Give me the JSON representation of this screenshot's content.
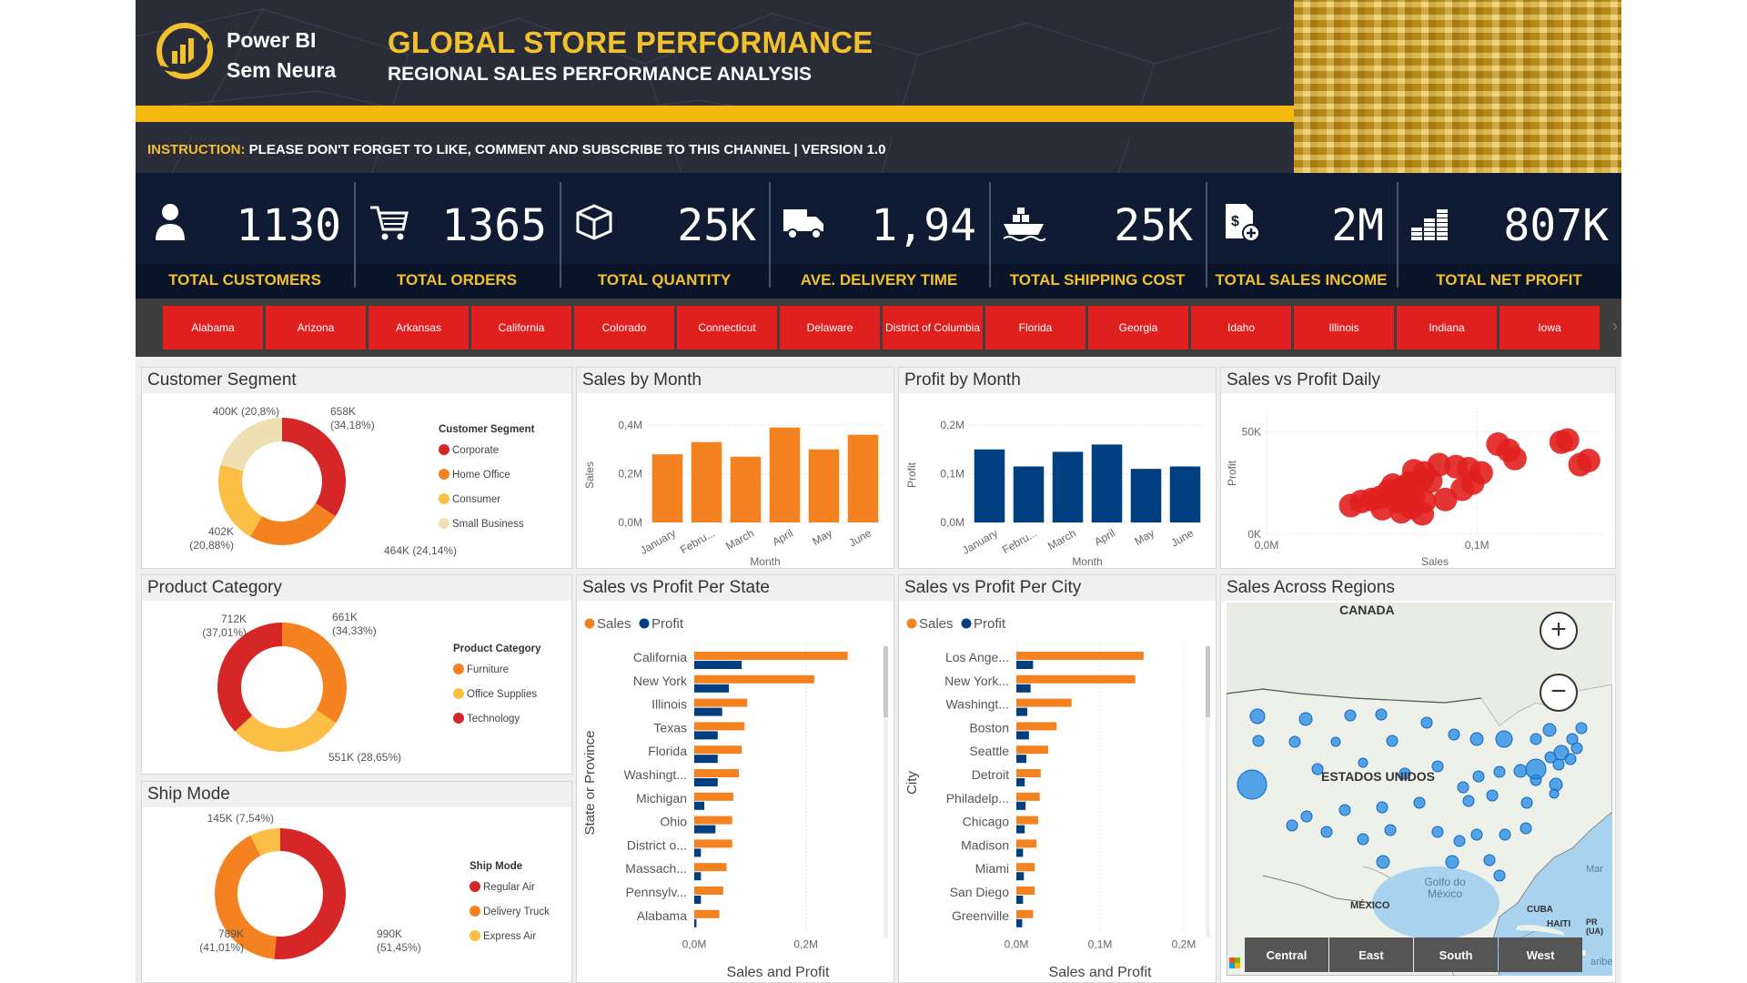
{
  "header": {
    "brand_line1": "Power BI",
    "brand_line2": "Sem Neura",
    "title": "GLOBAL STORE PERFORMANCE",
    "subtitle": "REGIONAL SALES PERFORMANCE ANALYSIS",
    "instruction_label": "INSTRUCTION:",
    "instruction_text": " PLEASE DON'T FORGET TO LIKE, COMMENT AND SUBSCRIBE TO THIS CHANNEL | VERSION 1.0",
    "accent_color": "#f2c12e"
  },
  "kpis": [
    {
      "value": "1130",
      "label": "TOTAL CUSTOMERS",
      "icon": "person-icon"
    },
    {
      "value": "1365",
      "label": "TOTAL ORDERS",
      "icon": "cart-icon"
    },
    {
      "value": "25K",
      "label": "TOTAL QUANTITY",
      "icon": "box-icon"
    },
    {
      "value": "1,94",
      "label": "AVE. DELIVERY TIME",
      "icon": "truck-icon"
    },
    {
      "value": "25K",
      "label": "TOTAL SHIPPING COST",
      "icon": "ship-icon"
    },
    {
      "value": "2M",
      "label": "TOTAL SALES INCOME",
      "icon": "invoice-icon"
    },
    {
      "value": "807K",
      "label": "TOTAL NET PROFIT",
      "icon": "coins-icon"
    }
  ],
  "states": [
    "Alabama",
    "Arizona",
    "Arkansas",
    "California",
    "Colorado",
    "Connecticut",
    "Delaware",
    "District of Columbia",
    "Florida",
    "Georgia",
    "Idaho",
    "Illinois",
    "Indiana",
    "Iowa"
  ],
  "panels": {
    "customer_segment": "Customer Segment",
    "sales_by_month": "Sales by Month",
    "profit_by_month": "Profit by Month",
    "sales_vs_profit_daily": "Sales vs Profit Daily",
    "product_category": "Product Category",
    "sales_vs_profit_state": "Sales vs Profit Per State",
    "sales_vs_profit_city": "Sales vs Profit Per City",
    "sales_across_regions": "Sales Across Regions",
    "ship_mode": "Ship Mode"
  },
  "map": {
    "labels": {
      "canada": "CANADA",
      "usa": "ESTADOS UNIDOS",
      "mexico": "MÉXICO",
      "gulf": "Golfo do México",
      "cuba": "CUBA",
      "haiti": "HAITI",
      "sea": "Mar",
      "pr": "PR (UA)",
      "caribe": "aribe"
    },
    "zoom_in": "+",
    "zoom_out": "−",
    "regions": [
      "Central",
      "East",
      "South",
      "West"
    ],
    "point_color": "#1e88e5"
  },
  "chart_data": [
    {
      "type": "pie",
      "title": "Customer Segment",
      "legend_title": "Customer Segment",
      "labels": [
        "Corporate",
        "Home Office",
        "Consumer",
        "Small Business"
      ],
      "values": [
        658000,
        464000,
        402000,
        400000
      ],
      "data_labels": [
        "658K (34,18%)",
        "464K (24,14%)",
        "402K (20,88%)",
        "400K (20,8%)"
      ],
      "colors": [
        "#d62728",
        "#f58220",
        "#fbbf45",
        "#eee0b0"
      ]
    },
    {
      "type": "bar",
      "title": "Sales by Month",
      "categories": [
        "January",
        "Febru...",
        "March",
        "April",
        "May",
        "June"
      ],
      "values": [
        0.28,
        0.33,
        0.27,
        0.39,
        0.3,
        0.36
      ],
      "xlabel": "Month",
      "ylabel": "Sales",
      "ylim": [
        0,
        0.4
      ],
      "yticks": [
        "0,0M",
        "0,2M",
        "0,4M"
      ],
      "color": "#f58220"
    },
    {
      "type": "bar",
      "title": "Profit by Month",
      "categories": [
        "January",
        "Febru...",
        "March",
        "April",
        "May",
        "June"
      ],
      "values": [
        0.15,
        0.115,
        0.145,
        0.16,
        0.11,
        0.115
      ],
      "xlabel": "Month",
      "ylabel": "Profit",
      "ylim": [
        0,
        0.2
      ],
      "yticks": [
        "0,0M",
        "0,1M",
        "0,2M"
      ],
      "color": "#003f7f"
    },
    {
      "type": "scatter",
      "title": "Sales vs Profit Daily",
      "xlabel": "Sales",
      "ylabel": "Profit",
      "xticks": [
        "0,0M",
        "0,1M"
      ],
      "yticks": [
        "0K",
        "50K"
      ],
      "xlim": [
        0,
        0.16
      ],
      "ylim": [
        0,
        60000
      ],
      "color": "#e0201f",
      "points": [
        [
          0.11,
          44000
        ],
        [
          0.115,
          41000
        ],
        [
          0.118,
          37000
        ],
        [
          0.082,
          34000
        ],
        [
          0.09,
          33000
        ],
        [
          0.096,
          32000
        ],
        [
          0.07,
          31000
        ],
        [
          0.075,
          30000
        ],
        [
          0.074,
          27000
        ],
        [
          0.078,
          26000
        ],
        [
          0.068,
          25000
        ],
        [
          0.06,
          24000
        ],
        [
          0.065,
          23000
        ],
        [
          0.058,
          21000
        ],
        [
          0.066,
          20000
        ],
        [
          0.06,
          19000
        ],
        [
          0.054,
          18000
        ],
        [
          0.07,
          18000
        ],
        [
          0.05,
          17000
        ],
        [
          0.045,
          16000
        ],
        [
          0.062,
          16000
        ],
        [
          0.075,
          16000
        ],
        [
          0.085,
          17000
        ],
        [
          0.069,
          13000
        ],
        [
          0.055,
          12500
        ],
        [
          0.064,
          11000
        ],
        [
          0.074,
          10000
        ],
        [
          0.04,
          14000
        ],
        [
          0.098,
          25000
        ],
        [
          0.102,
          30000
        ],
        [
          0.093,
          22000
        ],
        [
          0.14,
          45000
        ],
        [
          0.143,
          46000
        ],
        [
          0.153,
          36000
        ],
        [
          0.149,
          34000
        ]
      ]
    },
    {
      "type": "pie",
      "title": "Product Category",
      "legend_title": "Product Category",
      "labels": [
        "Furniture",
        "Office Supplies",
        "Technology"
      ],
      "values": [
        661000,
        551000,
        712000
      ],
      "data_labels": [
        "661K (34,33%)",
        "551K (28,65%)",
        "712K (37,01%)"
      ],
      "colors": [
        "#f58220",
        "#fbbf45",
        "#d62728"
      ]
    },
    {
      "type": "bar",
      "title": "Sales vs Profit Per State",
      "orientation": "horizontal",
      "categories": [
        "California",
        "New York",
        "Illinois",
        "Texas",
        "Florida",
        "Washingt...",
        "Michigan",
        "Ohio",
        "District o...",
        "Massach...",
        "Pennsylv...",
        "Alabama"
      ],
      "series": [
        {
          "name": "Sales",
          "values": [
            0.275,
            0.215,
            0.095,
            0.09,
            0.085,
            0.08,
            0.07,
            0.068,
            0.068,
            0.058,
            0.052,
            0.045
          ]
        },
        {
          "name": "Profit",
          "values": [
            0.085,
            0.062,
            0.05,
            0.042,
            0.042,
            0.042,
            0.018,
            0.038,
            0.012,
            0.012,
            0.012,
            0.004
          ]
        }
      ],
      "xlabel": "Sales and Profit",
      "ylabel": "State or Province",
      "xticks": [
        "0,0M",
        "0,2M"
      ],
      "xlim": [
        0,
        0.3
      ],
      "colors": [
        "#f58220",
        "#003f7f"
      ]
    },
    {
      "type": "bar",
      "title": "Sales vs Profit Per City",
      "orientation": "horizontal",
      "categories": [
        "Los Ange...",
        "New York...",
        "Washingt...",
        "Boston",
        "Seattle",
        "Detroit",
        "Philadelp...",
        "Chicago",
        "Madison",
        "Miami",
        "San Diego",
        "Greenville"
      ],
      "series": [
        {
          "name": "Sales",
          "values": [
            0.152,
            0.142,
            0.066,
            0.048,
            0.038,
            0.029,
            0.028,
            0.026,
            0.024,
            0.022,
            0.022,
            0.02
          ]
        },
        {
          "name": "Profit",
          "values": [
            0.02,
            0.017,
            0.013,
            0.015,
            0.012,
            0.01,
            0.011,
            0.01,
            0.008,
            0.009,
            0.008,
            0.007
          ]
        }
      ],
      "xlabel": "Sales and Profit",
      "ylabel": "City",
      "xticks": [
        "0,0M",
        "0,1M",
        "0,2M"
      ],
      "xlim": [
        0,
        0.2
      ],
      "colors": [
        "#f58220",
        "#003f7f"
      ]
    },
    {
      "type": "pie",
      "title": "Ship Mode",
      "legend_title": "Ship Mode",
      "labels": [
        "Regular Air",
        "Delivery Truck",
        "Express Air"
      ],
      "values": [
        990000,
        789000,
        145000
      ],
      "data_labels": [
        "990K (51,45%)",
        "789K (41,01%)",
        "145K (7,54%)"
      ],
      "colors": [
        "#d62728",
        "#f58220",
        "#fbbf45"
      ]
    }
  ]
}
